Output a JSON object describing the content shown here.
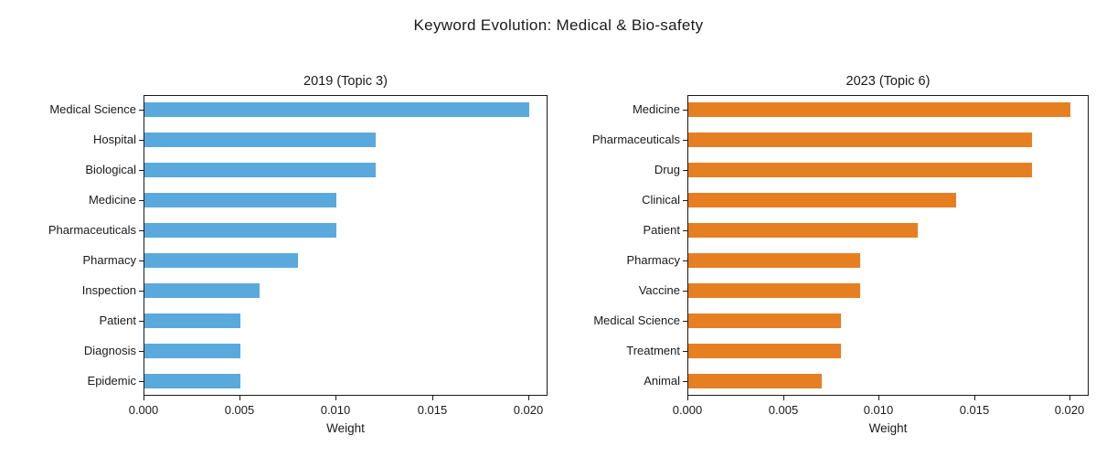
{
  "figure": {
    "title": "Keyword Evolution: Medical & Bio-safety"
  },
  "colors": {
    "bar_2019": "#5AA9DC",
    "bar_2023": "#E67F22",
    "axis": "#1a1a1a",
    "background": "#ffffff"
  },
  "chart_data": [
    {
      "type": "bar",
      "orientation": "horizontal",
      "slug": "2019-topic-3",
      "title": "2019 (Topic 3)",
      "xlabel": "Weight",
      "categories": [
        "Medical Science",
        "Hospital",
        "Biological",
        "Medicine",
        "Pharmaceuticals",
        "Pharmacy",
        "Inspection",
        "Patient",
        "Diagnosis",
        "Epidemic"
      ],
      "values": [
        0.02,
        0.012,
        0.012,
        0.01,
        0.01,
        0.008,
        0.006,
        0.005,
        0.005,
        0.005
      ],
      "bar_color": "#5AA9DC",
      "xlim": [
        0,
        0.021
      ],
      "xticks": [
        0,
        0.005,
        0.01,
        0.015,
        0.02
      ],
      "xtick_labels": [
        "0.000",
        "0.005",
        "0.010",
        "0.015",
        "0.020"
      ],
      "grid": false,
      "legend": null
    },
    {
      "type": "bar",
      "orientation": "horizontal",
      "slug": "2023-topic-6",
      "title": "2023 (Topic 6)",
      "xlabel": "Weight",
      "categories": [
        "Medicine",
        "Pharmaceuticals",
        "Drug",
        "Clinical",
        "Patient",
        "Pharmacy",
        "Vaccine",
        "Medical Science",
        "Treatment",
        "Animal"
      ],
      "values": [
        0.02,
        0.018,
        0.018,
        0.014,
        0.012,
        0.009,
        0.009,
        0.008,
        0.008,
        0.007
      ],
      "bar_color": "#E67F22",
      "xlim": [
        0,
        0.021
      ],
      "xticks": [
        0,
        0.005,
        0.01,
        0.015,
        0.02
      ],
      "xtick_labels": [
        "0.000",
        "0.005",
        "0.010",
        "0.015",
        "0.020"
      ],
      "grid": false,
      "legend": null
    }
  ]
}
